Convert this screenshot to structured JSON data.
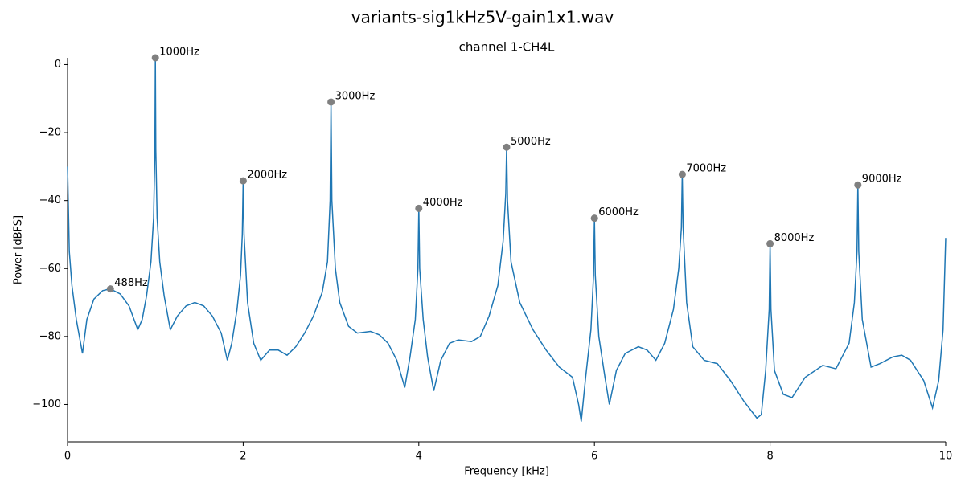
{
  "chart_data": {
    "type": "line",
    "title": "variants-sig1kHz5V-gain1x1.wav",
    "subtitle": "channel 1-CH4L",
    "x_label": "Frequency [kHz]",
    "y_label": "Power [dBFS]",
    "xlim": [
      0,
      10
    ],
    "ylim": [
      -111,
      2
    ],
    "xticks": [
      0,
      2,
      4,
      6,
      8,
      10
    ],
    "yticks": [
      {
        "value": -100,
        "label": "−100"
      },
      {
        "value": -80,
        "label": "−80"
      },
      {
        "value": -60,
        "label": "−60"
      },
      {
        "value": -40,
        "label": "−40"
      },
      {
        "value": -20,
        "label": "−20"
      },
      0
    ],
    "series": [
      {
        "color": "#1f77b4",
        "x": [
          0,
          0.02,
          0.05,
          0.1,
          0.17,
          0.22,
          0.3,
          0.4,
          0.488,
          0.6,
          0.7,
          0.8,
          0.85,
          0.9,
          0.95,
          0.98,
          0.995,
          1.0,
          1.005,
          1.02,
          1.05,
          1.1,
          1.17,
          1.25,
          1.35,
          1.45,
          1.55,
          1.65,
          1.75,
          1.82,
          1.87,
          1.93,
          1.97,
          1.99,
          2.0,
          2.01,
          2.05,
          2.12,
          2.2,
          2.3,
          2.4,
          2.5,
          2.6,
          2.7,
          2.8,
          2.9,
          2.96,
          2.99,
          3.0,
          3.01,
          3.05,
          3.1,
          3.2,
          3.3,
          3.45,
          3.55,
          3.65,
          3.75,
          3.84,
          3.9,
          3.96,
          3.99,
          4.0,
          4.01,
          4.05,
          4.1,
          4.17,
          4.25,
          4.35,
          4.45,
          4.6,
          4.7,
          4.8,
          4.9,
          4.96,
          4.99,
          5.0,
          5.01,
          5.05,
          5.15,
          5.3,
          5.45,
          5.6,
          5.75,
          5.82,
          5.85,
          5.9,
          5.96,
          5.99,
          6.0,
          6.01,
          6.05,
          6.12,
          6.17,
          6.25,
          6.35,
          6.5,
          6.6,
          6.7,
          6.8,
          6.9,
          6.96,
          6.99,
          7.0,
          7.01,
          7.05,
          7.12,
          7.25,
          7.4,
          7.55,
          7.7,
          7.85,
          7.9,
          7.95,
          7.99,
          8.0,
          8.01,
          8.05,
          8.15,
          8.25,
          8.4,
          8.6,
          8.75,
          8.9,
          8.96,
          8.99,
          9.0,
          9.01,
          9.05,
          9.15,
          9.25,
          9.4,
          9.5,
          9.6,
          9.75,
          9.85,
          9.92,
          9.97,
          10.0
        ],
        "values": [
          -30,
          -55,
          -65,
          -75,
          -85,
          -75,
          -69,
          -66.5,
          -66,
          -67.5,
          -71,
          -78,
          -75,
          -68,
          -58,
          -45,
          -25,
          2,
          -25,
          -45,
          -58,
          -68,
          -78,
          -74,
          -71,
          -70,
          -71,
          -74,
          -79,
          -87,
          -82,
          -72,
          -62,
          -50,
          -34.2,
          -50,
          -70,
          -82,
          -87,
          -84,
          -84,
          -85.5,
          -83,
          -79,
          -74,
          -67,
          -58,
          -40,
          -11,
          -40,
          -60,
          -70,
          -77,
          -79,
          -78.5,
          -79.5,
          -82,
          -87,
          -95,
          -86,
          -75,
          -60,
          -42.3,
          -60,
          -75,
          -86,
          -96,
          -87,
          -82,
          -81,
          -81.5,
          -80,
          -74,
          -65,
          -52,
          -38,
          -24.3,
          -40,
          -58,
          -70,
          -78,
          -84,
          -89,
          -92,
          -100,
          -105,
          -92,
          -78,
          -62,
          -45.2,
          -62,
          -80,
          -92,
          -100,
          -90,
          -85,
          -83,
          -84,
          -87,
          -82,
          -72,
          -60,
          -48,
          -32.3,
          -48,
          -70,
          -83,
          -87,
          -88,
          -93,
          -99,
          -104,
          -103,
          -90,
          -72,
          -52.7,
          -72,
          -90,
          -97,
          -98,
          -92,
          -88.5,
          -89.5,
          -82,
          -70,
          -55,
          -35.4,
          -55,
          -75,
          -89,
          -88,
          -86,
          -85.5,
          -87,
          -93,
          -101,
          -93,
          -78,
          -51
        ]
      }
    ],
    "peaks": {
      "color": "#808080",
      "x": [
        0.488,
        1,
        2,
        3,
        4,
        5,
        6,
        7,
        8,
        9
      ],
      "values": [
        -66,
        2,
        -34.2,
        -11,
        -42.3,
        -24.3,
        -45.2,
        -32.3,
        -52.7,
        -35.4
      ],
      "labels": [
        "488Hz",
        "1000Hz",
        "2000Hz",
        "3000Hz",
        "4000Hz",
        "5000Hz",
        "6000Hz",
        "7000Hz",
        "8000Hz",
        "9000Hz"
      ]
    }
  }
}
